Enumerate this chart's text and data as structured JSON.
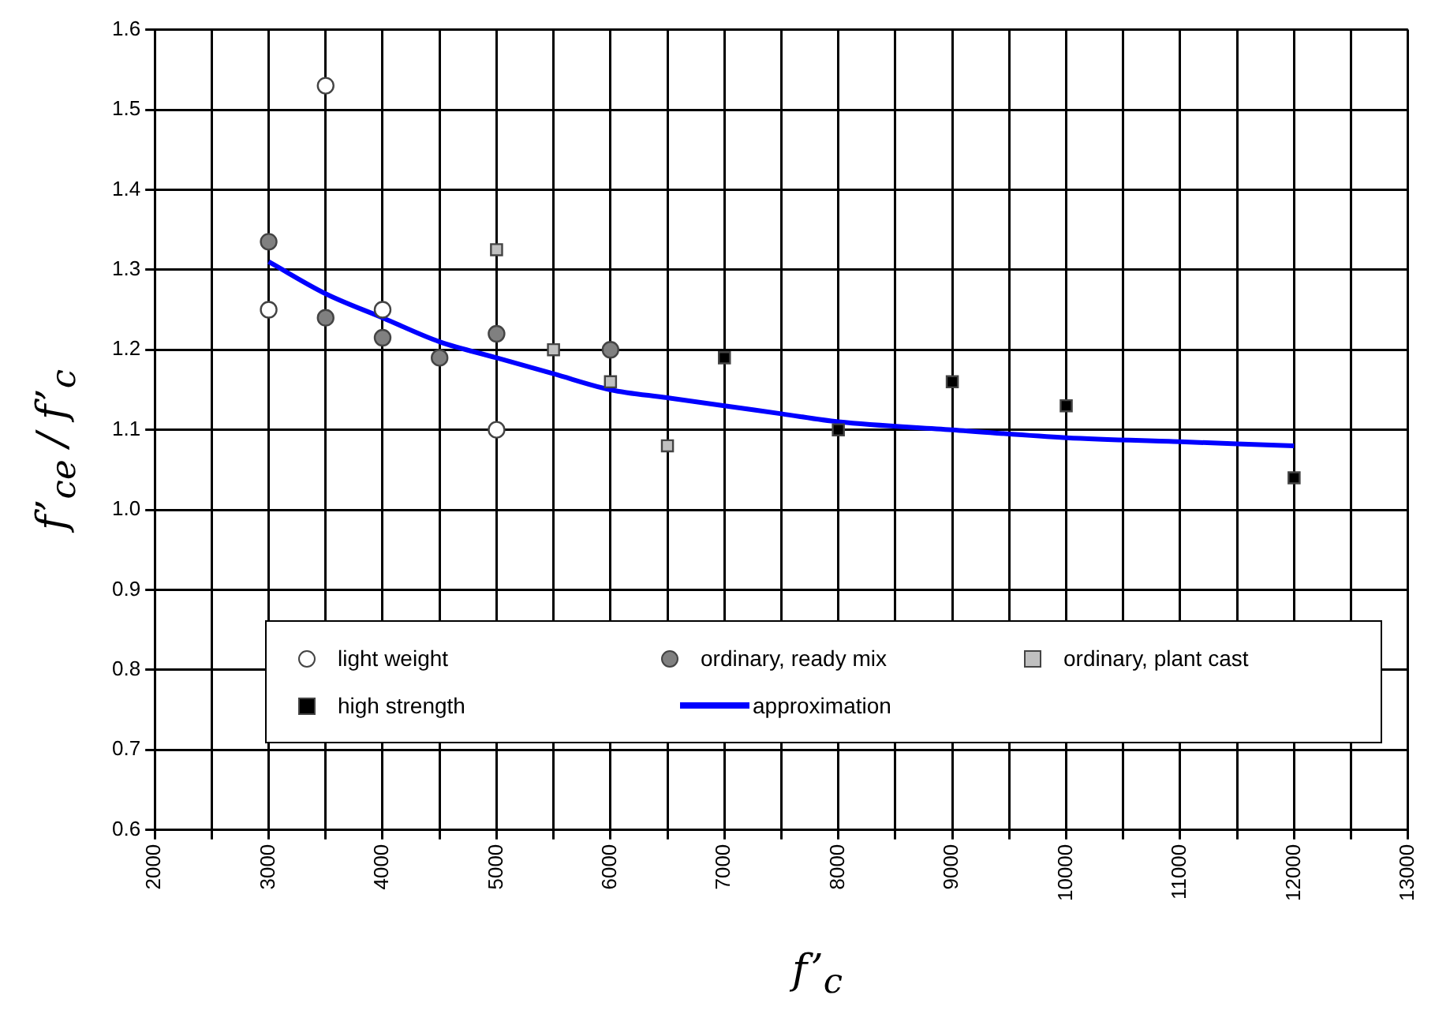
{
  "chart_data": {
    "type": "scatter",
    "xlabel": "f’$_{c}$",
    "ylabel": "f’$_{ce}$ / f’$_{c}$",
    "xlim": [
      2000,
      13000
    ],
    "xticks": [
      2000,
      {
        "value": 2500,
        "label": null
      },
      3000,
      {
        "value": 3500,
        "label": null
      },
      4000,
      {
        "value": 4500,
        "label": null
      },
      5000,
      {
        "value": 5500,
        "label": null
      },
      6000,
      {
        "value": 6500,
        "label": null
      },
      7000,
      {
        "value": 7500,
        "label": null
      },
      8000,
      {
        "value": 8500,
        "label": null
      },
      9000,
      {
        "value": 9500,
        "label": null
      },
      10000,
      {
        "value": 10500,
        "label": null
      },
      11000,
      {
        "value": 11500,
        "label": null
      },
      12000,
      {
        "value": 12500,
        "label": null
      },
      13000
    ],
    "ylim": [
      0.6,
      1.6
    ],
    "yticks": [
      0.6,
      0.7,
      0.8,
      0.9,
      {
        "value": 1.0,
        "label": "1.0"
      },
      1.1,
      1.2,
      1.3,
      1.4,
      1.5,
      1.6
    ],
    "grid": true,
    "legend": "bottom",
    "series": [
      {
        "name": "light weight",
        "type": "scatter",
        "marker": "circle",
        "color": "#ffffff",
        "x": [
          3000,
          3500,
          4000,
          5000
        ],
        "values": [
          1.25,
          1.53,
          1.25,
          1.1
        ]
      },
      {
        "name": "ordinary, ready mix",
        "type": "scatter",
        "marker": "circle",
        "color": "#808080",
        "x": [
          3000,
          3500,
          4000,
          4500,
          5000,
          6000
        ],
        "values": [
          1.335,
          1.24,
          1.215,
          1.19,
          1.22,
          1.2
        ]
      },
      {
        "name": "ordinary, plant cast",
        "type": "scatter",
        "marker": "square",
        "color": "#c0c0c0",
        "x": [
          5000,
          5500,
          6000,
          6500
        ],
        "values": [
          1.325,
          1.2,
          1.16,
          1.08
        ]
      },
      {
        "name": "high strength",
        "type": "scatter",
        "marker": "square",
        "color": "#000000",
        "x": [
          7000,
          8000,
          9000,
          10000,
          12000
        ],
        "values": [
          1.19,
          1.1,
          1.16,
          1.13,
          1.04
        ]
      },
      {
        "name": "approximation",
        "type": "line",
        "marker": "none",
        "line_style": "solid",
        "color": "#0000ff",
        "x": [
          3000,
          3500,
          4000,
          4500,
          5000,
          5500,
          6000,
          6500,
          7000,
          7500,
          8000,
          9000,
          10000,
          11000,
          12000
        ],
        "values": [
          1.31,
          1.27,
          1.24,
          1.21,
          1.19,
          1.17,
          1.15,
          1.14,
          1.13,
          1.12,
          1.11,
          1.1,
          1.09,
          1.085,
          1.08
        ]
      }
    ]
  }
}
